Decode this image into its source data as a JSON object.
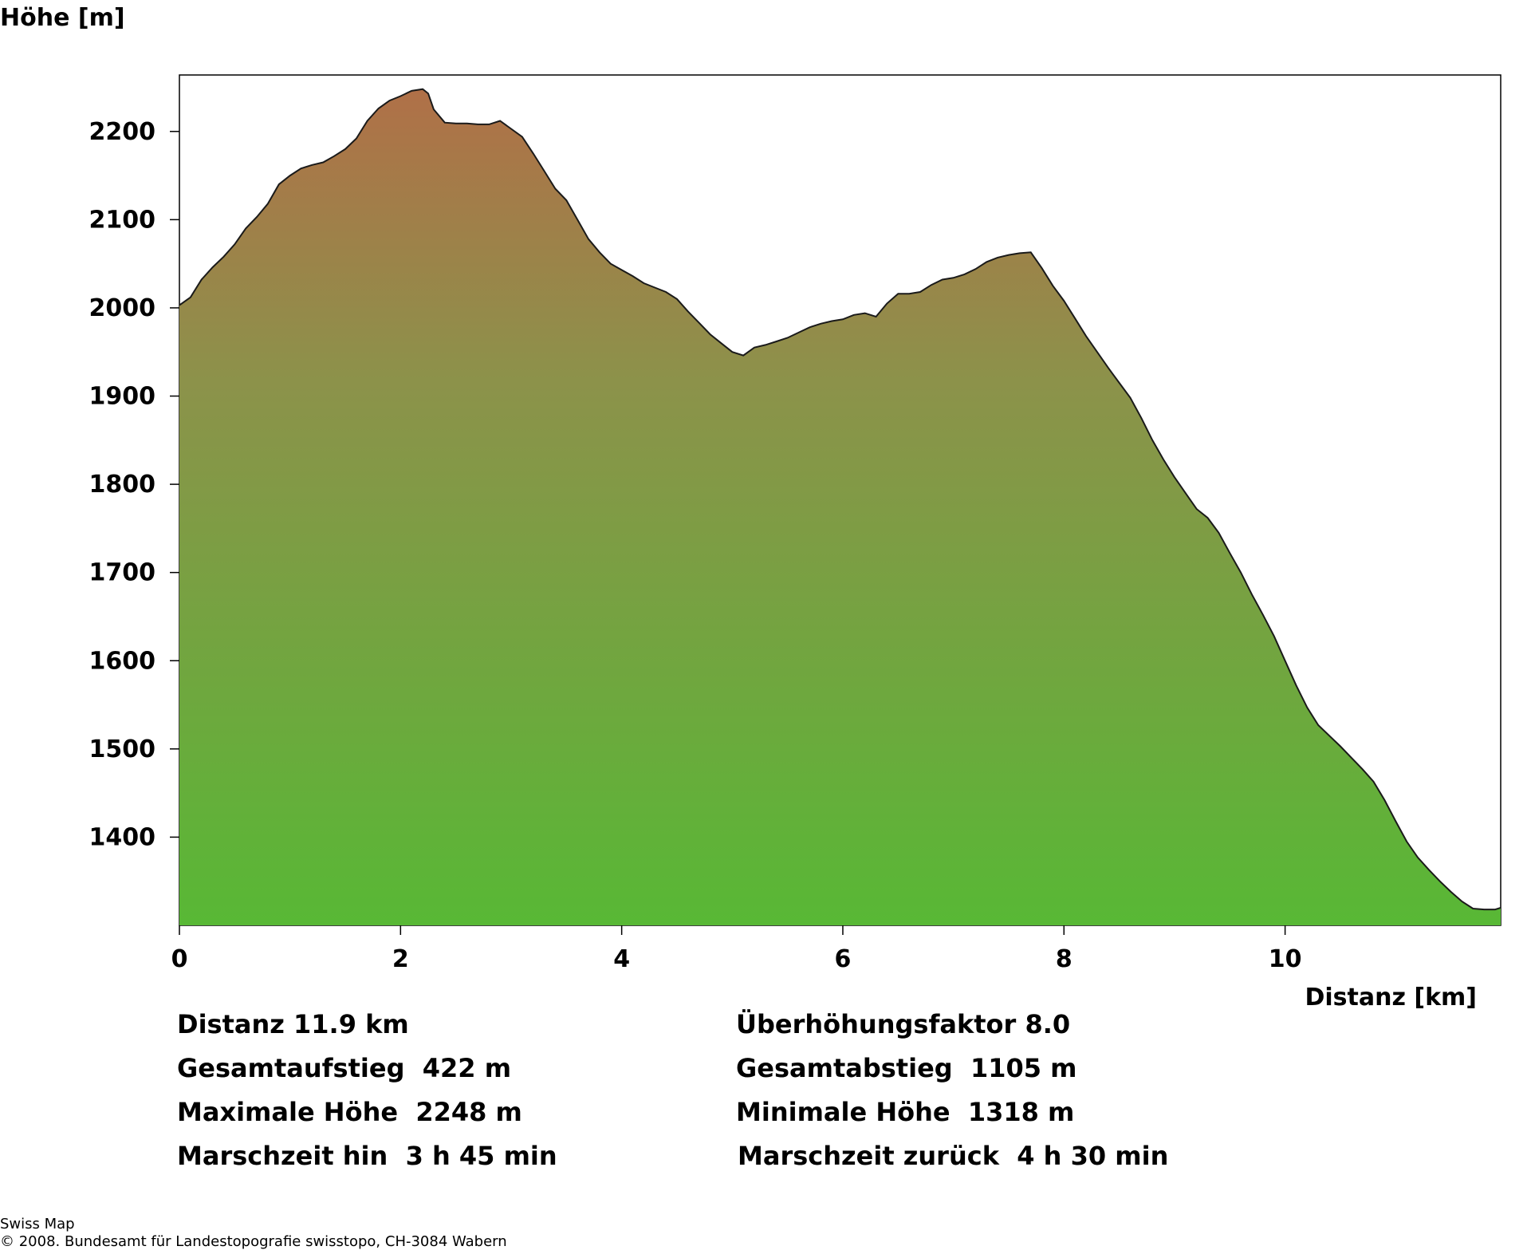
{
  "chart_data": {
    "type": "area",
    "title": "",
    "ylabel": "Höhe [m]",
    "xlabel": "Distanz [km]",
    "xlim": [
      0,
      11.95
    ],
    "ylim": [
      1300,
      2264
    ],
    "xticks": [
      0,
      2,
      4,
      6,
      8,
      10
    ],
    "yticks": [
      1400,
      1500,
      1600,
      1700,
      1800,
      1900,
      2000,
      2100,
      2200
    ],
    "grid": false,
    "legend": "none",
    "fill_gradient": {
      "top": "#b07048",
      "middle": "#8c924a",
      "bottom": "#58b835"
    },
    "line_color": "#1a1a1a",
    "x": [
      0,
      0.1,
      0.2,
      0.3,
      0.4,
      0.5,
      0.6,
      0.7,
      0.8,
      0.9,
      1.0,
      1.1,
      1.2,
      1.3,
      1.4,
      1.5,
      1.6,
      1.7,
      1.8,
      1.9,
      2.0,
      2.1,
      2.2,
      2.25,
      2.3,
      2.4,
      2.5,
      2.6,
      2.7,
      2.8,
      2.9,
      3.0,
      3.1,
      3.2,
      3.3,
      3.4,
      3.5,
      3.6,
      3.7,
      3.8,
      3.9,
      4.0,
      4.1,
      4.2,
      4.3,
      4.4,
      4.5,
      4.6,
      4.7,
      4.8,
      4.9,
      5.0,
      5.1,
      5.2,
      5.3,
      5.4,
      5.5,
      5.6,
      5.7,
      5.8,
      5.9,
      6.0,
      6.1,
      6.2,
      6.3,
      6.4,
      6.5,
      6.6,
      6.7,
      6.8,
      6.9,
      7.0,
      7.1,
      7.2,
      7.3,
      7.4,
      7.5,
      7.6,
      7.7,
      7.8,
      7.9,
      8.0,
      8.1,
      8.2,
      8.3,
      8.4,
      8.5,
      8.6,
      8.7,
      8.8,
      8.9,
      9.0,
      9.1,
      9.2,
      9.3,
      9.4,
      9.5,
      9.6,
      9.7,
      9.8,
      9.9,
      10.0,
      10.1,
      10.2,
      10.3,
      10.4,
      10.5,
      10.6,
      10.7,
      10.8,
      10.9,
      11.0,
      11.1,
      11.2,
      11.3,
      11.4,
      11.5,
      11.6,
      11.7,
      11.8,
      11.9,
      11.95
    ],
    "values": [
      2003,
      2012,
      2032,
      2046,
      2058,
      2072,
      2090,
      2103,
      2118,
      2140,
      2150,
      2158,
      2162,
      2165,
      2172,
      2180,
      2192,
      2212,
      2226,
      2235,
      2240,
      2246,
      2248,
      2243,
      2225,
      2210,
      2209,
      2209,
      2208,
      2208,
      2212,
      2203,
      2194,
      2175,
      2155,
      2135,
      2122,
      2100,
      2078,
      2063,
      2050,
      2043,
      2036,
      2028,
      2023,
      2018,
      2010,
      1996,
      1983,
      1970,
      1960,
      1950,
      1946,
      1955,
      1958,
      1962,
      1966,
      1972,
      1978,
      1982,
      1985,
      1987,
      1992,
      1994,
      1990,
      2005,
      2016,
      2016,
      2018,
      2026,
      2032,
      2034,
      2038,
      2044,
      2052,
      2057,
      2060,
      2062,
      2063,
      2045,
      2025,
      2008,
      1988,
      1968,
      1950,
      1932,
      1915,
      1898,
      1875,
      1850,
      1828,
      1808,
      1790,
      1772,
      1762,
      1745,
      1722,
      1700,
      1675,
      1652,
      1628,
      1600,
      1572,
      1547,
      1527,
      1515,
      1503,
      1490,
      1477,
      1463,
      1442,
      1418,
      1395,
      1377,
      1363,
      1350,
      1338,
      1327,
      1319,
      1318,
      1318,
      1320
    ]
  },
  "stats": {
    "distanz": "Distanz 11.9 km",
    "ueberhoehung": "Überhöhungsfaktor 8.0",
    "gesamtaufstieg": "Gesamtaufstieg  422 m",
    "gesamtabstieg": "Gesamtabstieg  1105 m",
    "maximale_hoehe": "Maximale Höhe  2248 m",
    "minimale_hoehe": "Minimale Höhe  1318 m",
    "marschzeit_hin": "Marschzeit hin  3 h 45 min",
    "marschzeit_zurueck": "Marschzeit zurück  4 h 30 min"
  },
  "credits": {
    "line1": "Swiss Map",
    "line2": "© 2008. Bundesamt für Landestopografie swisstopo, CH-3084 Wabern"
  }
}
